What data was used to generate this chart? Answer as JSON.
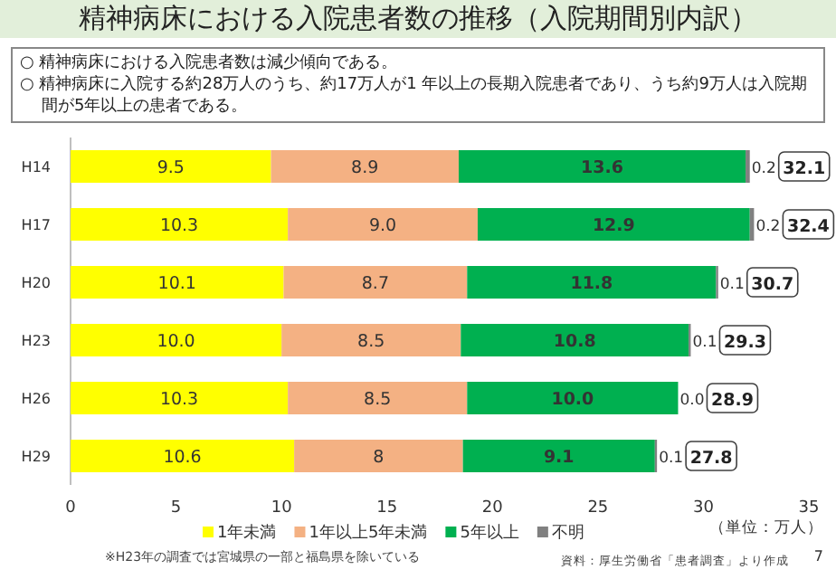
{
  "chart_data": {
    "type": "bar",
    "orientation": "horizontal",
    "stacked": true,
    "title": "精神病床における入院患者数の推移（入院期間別内訳）",
    "categories": [
      "H14",
      "H17",
      "H20",
      "H23",
      "H26",
      "H29"
    ],
    "series": [
      {
        "name": "1年未満",
        "color": "#ffff00",
        "values": [
          9.5,
          10.3,
          10.1,
          10.0,
          10.3,
          10.6
        ],
        "value_labels": [
          "9.5",
          "10.3",
          "10.1",
          "10.0",
          "10.3",
          "10.6"
        ]
      },
      {
        "name": "1年以上5年未満",
        "color": "#f4b183",
        "values": [
          8.9,
          9.0,
          8.7,
          8.5,
          8.5,
          8
        ],
        "value_labels": [
          "8.9",
          "9.0",
          "8.7",
          "8.5",
          "8.5",
          "8"
        ]
      },
      {
        "name": "5年以上",
        "color": "#00b050",
        "values": [
          13.6,
          12.9,
          11.8,
          10.8,
          10.0,
          9.1
        ],
        "value_labels": [
          "13.6",
          "12.9",
          "11.8",
          "10.8",
          "10.0",
          "9.1"
        ]
      },
      {
        "name": "不明",
        "color": "#808080",
        "values": [
          0.2,
          0.2,
          0.1,
          0.1,
          0.0,
          0.1
        ],
        "value_labels": [
          "0.2",
          "0.2",
          "0.1",
          "0.1",
          "0.0",
          "0.1"
        ]
      }
    ],
    "totals": [
      "32.1",
      "32.4",
      "30.7",
      "29.3",
      "28.9",
      "27.8"
    ],
    "xlim": [
      0,
      35
    ],
    "xticks": [
      0,
      5,
      10,
      15,
      20,
      25,
      30,
      35
    ],
    "legend": "bottom",
    "grid": false,
    "annotations": [
      "○ 精神病床における入院患者数は減少傾向である。",
      "○ 精神病床に入院する約28万人のうち、約17万人が1 年以上の長期入院患者であり、うち約9万人は入院期間が5年以上の患者である。",
      "（単位：万人）",
      "※H23年の調査では宮城県の一部と福島県を除いている",
      "資料：厚生労働省「患者調査」より作成",
      "7"
    ]
  }
}
